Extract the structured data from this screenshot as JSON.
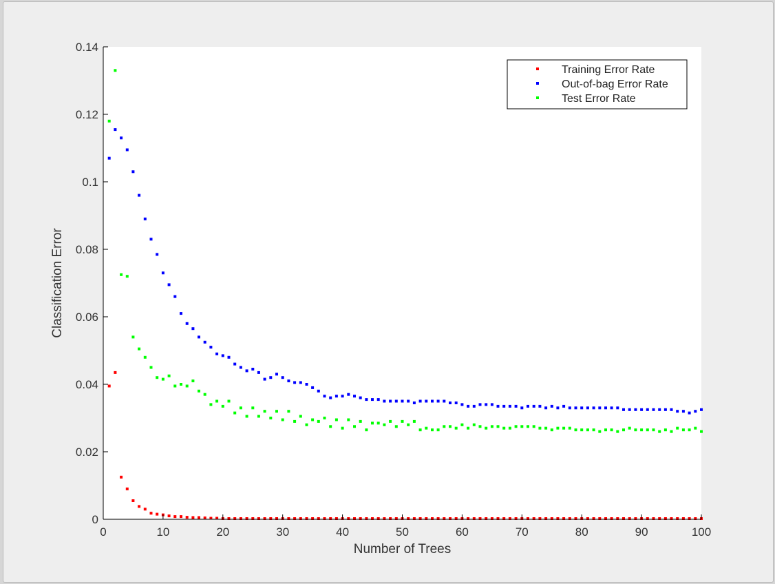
{
  "chart_data": {
    "type": "scatter",
    "title": "",
    "xlabel": "Number of Trees",
    "ylabel": "Classification Error",
    "xlim": [
      0,
      100
    ],
    "ylim": [
      0,
      0.14
    ],
    "xticks": [
      "0",
      "10",
      "20",
      "30",
      "40",
      "50",
      "60",
      "70",
      "80",
      "90",
      "100"
    ],
    "yticks": [
      "0",
      "0.02",
      "0.04",
      "0.06",
      "0.08",
      "0.1",
      "0.12",
      "0.14"
    ],
    "grid": false,
    "legend_position": "top-right",
    "x": [
      1,
      2,
      3,
      4,
      5,
      6,
      7,
      8,
      9,
      10,
      11,
      12,
      13,
      14,
      15,
      16,
      17,
      18,
      19,
      20,
      21,
      22,
      23,
      24,
      25,
      26,
      27,
      28,
      29,
      30,
      31,
      32,
      33,
      34,
      35,
      36,
      37,
      38,
      39,
      40,
      41,
      42,
      43,
      44,
      45,
      46,
      47,
      48,
      49,
      50,
      51,
      52,
      53,
      54,
      55,
      56,
      57,
      58,
      59,
      60,
      61,
      62,
      63,
      64,
      65,
      66,
      67,
      68,
      69,
      70,
      71,
      72,
      73,
      74,
      75,
      76,
      77,
      78,
      79,
      80,
      81,
      82,
      83,
      84,
      85,
      86,
      87,
      88,
      89,
      90,
      91,
      92,
      93,
      94,
      95,
      96,
      97,
      98,
      99,
      100
    ],
    "series": [
      {
        "name": "Training Error Rate",
        "color": "#ff0000",
        "values": [
          0.0395,
          0.0435,
          0.0125,
          0.009,
          0.0055,
          0.0038,
          0.003,
          0.0018,
          0.0015,
          0.0013,
          0.001,
          0.0008,
          0.0008,
          0.0006,
          0.0005,
          0.0005,
          0.0004,
          0.0003,
          0.0003,
          0.0002,
          0.0002,
          0.0002,
          0.0002,
          0.0002,
          0.0002,
          0.0002,
          0.0002,
          0.0002,
          0.0002,
          0.0002,
          0.0002,
          0.0002,
          0.0002,
          0.0002,
          0.0002,
          0.0002,
          0.0002,
          0.0002,
          0.0002,
          0.0002,
          0.0002,
          0.0002,
          0.0002,
          0.0002,
          0.0002,
          0.0002,
          0.0002,
          0.0002,
          0.0002,
          0.0002,
          0.0002,
          0.0002,
          0.0002,
          0.0002,
          0.0002,
          0.0002,
          0.0002,
          0.0002,
          0.0002,
          0.0002,
          0.0002,
          0.0002,
          0.0002,
          0.0002,
          0.0002,
          0.0002,
          0.0002,
          0.0002,
          0.0002,
          0.0002,
          0.0002,
          0.0002,
          0.0002,
          0.0002,
          0.0002,
          0.0002,
          0.0002,
          0.0002,
          0.0002,
          0.0002,
          0.0002,
          0.0002,
          0.0002,
          0.0002,
          0.0002,
          0.0002,
          0.0002,
          0.0002,
          0.0002,
          0.0002,
          0.0002,
          0.0002,
          0.0002,
          0.0002,
          0.0002,
          0.0002,
          0.0002,
          0.0002,
          0.0002,
          0.0002
        ]
      },
      {
        "name": "Out-of-bag Error Rate",
        "color": "#0000ff",
        "values": [
          0.107,
          0.1155,
          0.113,
          0.1095,
          0.103,
          0.096,
          0.089,
          0.083,
          0.0785,
          0.073,
          0.0695,
          0.066,
          0.061,
          0.058,
          0.0565,
          0.054,
          0.0525,
          0.051,
          0.049,
          0.0485,
          0.048,
          0.046,
          0.045,
          0.044,
          0.0445,
          0.0435,
          0.0415,
          0.042,
          0.043,
          0.042,
          0.041,
          0.0405,
          0.0405,
          0.04,
          0.039,
          0.038,
          0.0365,
          0.036,
          0.0365,
          0.0365,
          0.037,
          0.0365,
          0.036,
          0.0355,
          0.0355,
          0.0355,
          0.035,
          0.035,
          0.035,
          0.035,
          0.035,
          0.0345,
          0.035,
          0.035,
          0.035,
          0.035,
          0.035,
          0.0345,
          0.0345,
          0.034,
          0.0335,
          0.0335,
          0.034,
          0.034,
          0.034,
          0.0335,
          0.0335,
          0.0335,
          0.0335,
          0.033,
          0.0335,
          0.0335,
          0.0335,
          0.033,
          0.0335,
          0.033,
          0.0335,
          0.033,
          0.033,
          0.033,
          0.033,
          0.033,
          0.033,
          0.033,
          0.033,
          0.033,
          0.0325,
          0.0325,
          0.0325,
          0.0325,
          0.0325,
          0.0325,
          0.0325,
          0.0325,
          0.0325,
          0.032,
          0.032,
          0.0315,
          0.032,
          0.0325
        ]
      },
      {
        "name": "Test Error Rate",
        "color": "#00ff00",
        "values": [
          0.118,
          0.133,
          0.0725,
          0.072,
          0.054,
          0.0505,
          0.048,
          0.045,
          0.042,
          0.0415,
          0.0425,
          0.0395,
          0.04,
          0.0395,
          0.041,
          0.038,
          0.037,
          0.034,
          0.035,
          0.0335,
          0.035,
          0.0315,
          0.033,
          0.0305,
          0.033,
          0.0305,
          0.032,
          0.03,
          0.032,
          0.0295,
          0.032,
          0.029,
          0.0305,
          0.028,
          0.0295,
          0.029,
          0.03,
          0.0275,
          0.0295,
          0.027,
          0.0295,
          0.0275,
          0.029,
          0.0265,
          0.0285,
          0.0285,
          0.028,
          0.029,
          0.0275,
          0.029,
          0.028,
          0.029,
          0.0265,
          0.027,
          0.0265,
          0.0265,
          0.0275,
          0.0275,
          0.027,
          0.028,
          0.027,
          0.028,
          0.0275,
          0.027,
          0.0275,
          0.0275,
          0.027,
          0.027,
          0.0275,
          0.0275,
          0.0275,
          0.0275,
          0.027,
          0.027,
          0.0265,
          0.027,
          0.027,
          0.027,
          0.0265,
          0.0265,
          0.0265,
          0.0265,
          0.026,
          0.0265,
          0.0265,
          0.026,
          0.0265,
          0.027,
          0.0265,
          0.0265,
          0.0265,
          0.0265,
          0.026,
          0.0265,
          0.026,
          0.027,
          0.0265,
          0.0265,
          0.027,
          0.026
        ]
      }
    ]
  }
}
